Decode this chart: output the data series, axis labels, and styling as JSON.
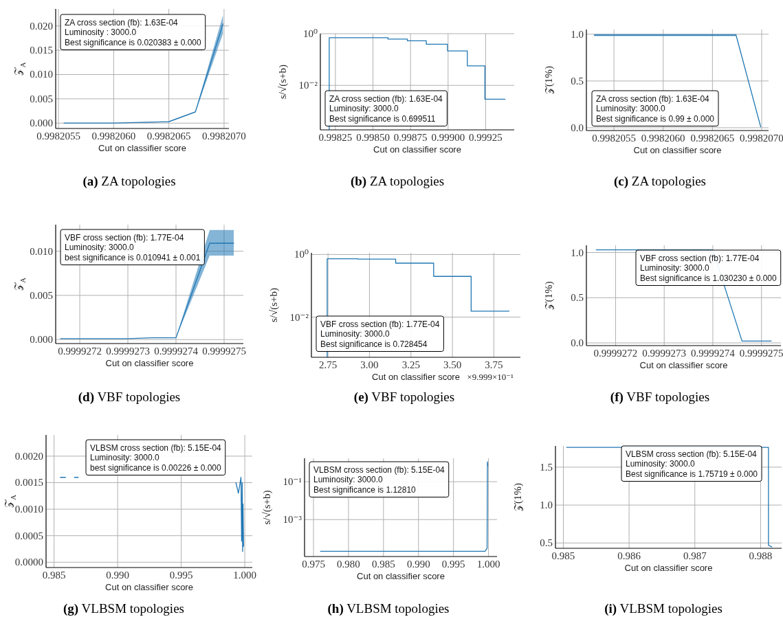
{
  "chart_data": [
    {
      "type": "line",
      "title": "(a) ZA topologies",
      "xlabel": "Cut on classifier score",
      "ylabel": "𝒵$_{A}$",
      "annotations": [
        "ZA cross section (fb): 1.63E-04",
        "Luminosity : 3000.0",
        "Best significance is 0.020383 ± 0.000"
      ],
      "x": [
        0.99820555,
        0.998206,
        0.9982065,
        0.99820674,
        0.99820699
      ],
      "series": [
        {
          "color": "#1f77b4",
          "values": [
            0,
            0,
            0.0003,
            0.0023,
            0.0204
          ],
          "lower": [
            0,
            0,
            0.0002,
            0.0022,
            0.0184
          ],
          "upper": [
            0,
            0,
            0.0004,
            0.0024,
            0.0222
          ]
        }
      ],
      "xlim": [
        0.998205475,
        0.998207044
      ],
      "xticks": [
        0.9982055,
        {
          "value": 0.998206,
          "label": "0.9982060"
        },
        0.9982065,
        {
          "value": 0.998207,
          "label": "0.9982070"
        }
      ],
      "ylim": [
        -0.0011,
        0.0235
      ],
      "yticks": [
        {
          "value": 0,
          "label": "0.000"
        },
        0.005,
        {
          "value": 0.01,
          "label": "0.010"
        },
        0.015,
        {
          "value": 0.02,
          "label": "0.020"
        }
      ],
      "grid": true
    },
    {
      "type": "step",
      "title": "(b) ZA topologies",
      "xlabel": "Cut on classifier score",
      "ylabel": "s/√(s+b)",
      "annotations": [
        "ZA cross section (fb): 1.63E-04",
        "Luminosity: 3000.0",
        "Best significance is 0.699511"
      ],
      "x": [
        0.998209,
        0.998209,
        0.9986,
        0.998729,
        0.998855,
        0.998996,
        0.999128,
        0.999245,
        0.999379
      ],
      "series": [
        {
          "color": "#1f77b4",
          "values": [
            0.0002,
            0.7,
            0.62,
            0.53,
            0.39,
            0.215,
            0.057,
            0.0029,
            0.0029
          ]
        }
      ],
      "log": "y",
      "xlim": [
        0.99815,
        0.99944
      ],
      "xticks": [
        0.99825,
        {
          "value": 0.9985,
          "label": "0.99850"
        },
        0.99875,
        {
          "value": 0.999,
          "label": "0.99900"
        },
        0.99925
      ],
      "ylim": [
        0.00019,
        1
      ],
      "yticks": [
        {
          "value": 1,
          "label": "10⁰"
        },
        {
          "value": 0.01,
          "label": "10⁻²"
        }
      ],
      "grid": true
    },
    {
      "type": "line",
      "title": "(c) ZA topologies",
      "xlabel": "Cut on classifier score",
      "ylabel": "𝒵(1%)",
      "annotations": [
        "ZA cross section (fb): 1.63E-04",
        "Luminosity: 3000.0",
        "Best significance is 0.99 ± 0.000"
      ],
      "x": [
        0.9982053,
        0.99820674,
        0.99820699
      ],
      "series": [
        {
          "color": "#1f77b4",
          "values": [
            0.99,
            0.99,
            0.01
          ],
          "lower": [
            0.98,
            0.98,
            0.01
          ],
          "upper": [
            1.0,
            1.0,
            0.01
          ]
        }
      ],
      "xlim": [
        0.99820522,
        0.99820707
      ],
      "xticks": [
        0.9982055,
        {
          "value": 0.998206,
          "label": "0.9982060"
        },
        0.9982065,
        {
          "value": 0.998207,
          "label": "0.9982070"
        }
      ],
      "ylim": [
        -0.03,
        1.05
      ],
      "yticks": [
        {
          "value": 0,
          "label": "0.0"
        },
        0.5,
        {
          "value": 1,
          "label": "1.0"
        }
      ],
      "grid": true
    },
    {
      "type": "line",
      "title": "(d) VBF topologies",
      "xlabel": "Cut on classifier score",
      "ylabel": "𝒵$_{A}$",
      "annotations": [
        "VBF cross section (fb): 1.77E-04",
        "Luminosity: 3000.0",
        "best significance is 0.010941 ± 0.001"
      ],
      "x": [
        0.99992716,
        0.9999273,
        0.99992735,
        0.9999274,
        0.99992747,
        0.99992752
      ],
      "series": [
        {
          "color": "#1f77b4",
          "values": [
            0.0001,
            0.0001,
            0.0002,
            0.0002,
            0.0109,
            0.0109
          ],
          "lower": [
            0.0001,
            0.0001,
            0.0002,
            0.0002,
            0.0095,
            0.0095
          ],
          "upper": [
            0.0001,
            0.0001,
            0.0002,
            0.0002,
            0.0124,
            0.0124
          ]
        }
      ],
      "xlim": [
        0.99992715,
        0.99992754
      ],
      "xticks": [
        0.9999272,
        0.9999273,
        0.9999274,
        0.9999275
      ],
      "ylim": [
        -0.00045,
        0.013
      ],
      "yticks": [
        {
          "value": 0,
          "label": "0.000"
        },
        0.005,
        {
          "value": 0.01,
          "label": "0.010"
        }
      ],
      "grid": true
    },
    {
      "type": "step",
      "title": "(e) VBF topologies",
      "xlabel": "Cut on classifier score",
      "ylabel": "s/√(s+b)",
      "annotations": [
        "VBF cross section (fb): 1.77E-04",
        "Luminosity: 3000.0",
        "Best significance is 0.728454",
        "×9.999×10⁻¹"
      ],
      "x": [
        2.745,
        2.745,
        2.93,
        3.158,
        3.387,
        3.613,
        3.842
      ],
      "series": [
        {
          "color": "#1f77b4",
          "values": [
            0.00053,
            0.73,
            0.71,
            0.53,
            0.2,
            0.0155,
            0.0155
          ]
        }
      ],
      "log": "y",
      "xlim": [
        2.65,
        3.91
      ],
      "xticks": [
        2.75,
        {
          "value": 3,
          "label": "3.00"
        },
        3.25,
        {
          "value": 3.5,
          "label": "3.50"
        },
        3.75
      ],
      "ylim": [
        0.00052,
        1.13
      ],
      "yticks": [
        {
          "value": 1,
          "label": "10⁰"
        },
        {
          "value": 0.01,
          "label": "10⁻²"
        }
      ],
      "grid": true
    },
    {
      "type": "line",
      "title": "(f) VBF topologies",
      "xlabel": "Cut on classifier score",
      "ylabel": "𝒵(1%)",
      "annotations": [
        "VBF cross section (fb): 1.77E-04",
        "Luminosity: 3000.0",
        "Best significance is 1.030230 ± 0.000"
      ],
      "x": [
        0.99992716,
        0.9999274,
        0.99992746,
        0.99992752
      ],
      "series": [
        {
          "color": "#1f77b4",
          "values": [
            1.03,
            1.03,
            0.02,
            0.02
          ]
        }
      ],
      "xlim": [
        0.99992714,
        0.99992754
      ],
      "xticks": [
        0.9999272,
        0.9999273,
        0.9999274,
        0.9999275
      ],
      "ylim": [
        -0.03,
        1.08
      ],
      "yticks": [
        {
          "value": 0,
          "label": "0.0"
        },
        0.5,
        {
          "value": 1,
          "label": "1.0"
        }
      ],
      "grid": true
    },
    {
      "type": "line",
      "title": "(g) VLBSM topologies",
      "xlabel": "Cut on classifier score",
      "ylabel": "𝒵$_{A}$",
      "annotations": [
        "VLBSM cross section (fb): 5.15E-04",
        "Luminosity: 3000.0",
        "best significance is 0.00226 ± 0.000"
      ],
      "x": [
        0.9855,
        0.9859,
        0.9862,
        0.9866,
        0.9869,
        0.999,
        0.9993,
        0.9995,
        0.9997,
        0.99975,
        0.9998,
        0.99983,
        0.99986,
        0.9999
      ],
      "series": [
        {
          "color": "#1f77b4",
          "values": [
            0.0016,
            0.0016,
            null,
            0.0016,
            0.0016,
            null,
            0.0015,
            0.0013,
            0.0016,
            0.0004,
            0.0015,
            0.0002,
            0.0011,
            0.0003
          ]
        }
      ],
      "xlim": [
        0.98437,
        1.00059
      ],
      "xticks": [
        0.985,
        {
          "value": 0.99,
          "label": "0.990"
        },
        0.995,
        {
          "value": 1,
          "label": "1.000"
        }
      ],
      "ylim": [
        -0.0001,
        0.0024
      ],
      "yticks": [
        {
          "value": 0,
          "label": "0.0000"
        },
        0.0005,
        {
          "value": 0.001,
          "label": "0.0010"
        },
        0.0015,
        {
          "value": 0.002,
          "label": "0.0020"
        }
      ],
      "grid": true
    },
    {
      "type": "line",
      "title": "(h) VLBSM topologies",
      "xlabel": "Cut on classifier score",
      "ylabel": "s/√(s+b)",
      "annotations": [
        "VLBSM cross section (fb): 5.15E-04",
        "Luminosity: 3000.0",
        "Best significance is 1.12810"
      ],
      "x": [
        0.976,
        0.9995,
        0.9998,
        0.99985,
        0.9999
      ],
      "series": [
        {
          "color": "#1f77b4",
          "values": [
            2.1e-05,
            2.1e-05,
            3e-05,
            1.128,
            0.7
          ]
        }
      ],
      "log": "y",
      "xlim": [
        0.97372,
        1.00122
      ],
      "xticks": [
        0.975,
        {
          "value": 0.98,
          "label": "0.980"
        },
        0.985,
        {
          "value": 0.99,
          "label": "0.990"
        },
        0.995,
        {
          "value": 1,
          "label": "1.000"
        }
      ],
      "ylim": [
        1.12e-05,
        1.72
      ],
      "yticks": [
        {
          "value": 0.1,
          "label": "10⁻¹"
        },
        {
          "value": 0.001,
          "label": "10⁻³"
        }
      ],
      "grid": true
    },
    {
      "type": "line",
      "title": "(i) VLBSM topologies",
      "xlabel": "Cut on classifier score",
      "ylabel": "𝒵(1%)",
      "annotations": [
        "VLBSM cross section (fb): 5.15E-04",
        "Luminosity: 3000.0",
        "Best significance is 1.75719 ± 0.000"
      ],
      "x": [
        0.98505,
        0.98585,
        0.98812,
        0.98812,
        0.98817
      ],
      "series": [
        {
          "color": "#1f77b4",
          "values": [
            1.76,
            1.76,
            1.76,
            0.47,
            0.45
          ]
        }
      ],
      "xlim": [
        0.98488,
        0.98832
      ],
      "xticks": [
        0.985,
        0.986,
        0.987,
        0.988
      ],
      "ylim": [
        0.43,
        1.78
      ],
      "yticks": [
        0.5,
        {
          "value": 1,
          "label": "1.0"
        },
        1.5
      ],
      "grid": true
    }
  ]
}
